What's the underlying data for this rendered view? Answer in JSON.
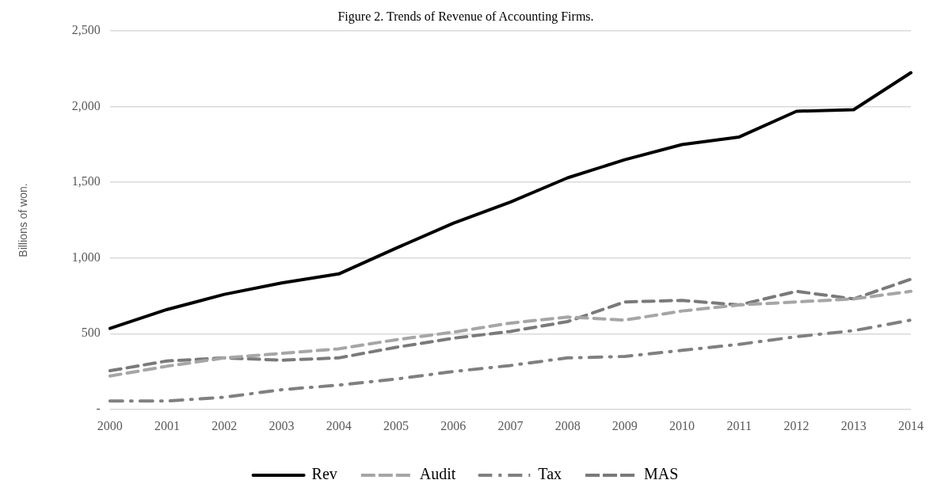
{
  "chart_data": {
    "type": "line",
    "title": "Figure 2. Trends of Revenue of Accounting Firms.",
    "ylabel": "Billions of won.",
    "categories": [
      "2000",
      "2001",
      "2002",
      "2003",
      "2004",
      "2005",
      "2006",
      "2007",
      "2008",
      "2009",
      "2010",
      "2011",
      "2012",
      "2013",
      "2014"
    ],
    "series": [
      {
        "name": "Rev",
        "color": "#000000",
        "line_style": "solid",
        "values": [
          535,
          660,
          760,
          835,
          895,
          1065,
          1230,
          1370,
          1530,
          1650,
          1750,
          1800,
          1970,
          1980,
          2225
        ]
      },
      {
        "name": "Audit",
        "color": "#a6a6a6",
        "line_style": "dashed",
        "values": [
          220,
          285,
          340,
          370,
          400,
          460,
          510,
          570,
          610,
          590,
          650,
          690,
          710,
          730,
          780
        ]
      },
      {
        "name": "Tax",
        "color": "#808080",
        "line_style": "dashdot",
        "values": [
          55,
          55,
          80,
          130,
          160,
          200,
          250,
          290,
          340,
          350,
          390,
          430,
          480,
          520,
          590
        ]
      },
      {
        "name": "MAS",
        "color": "#7a7a7a",
        "line_style": "dashed",
        "values": [
          255,
          320,
          340,
          325,
          340,
          410,
          470,
          515,
          580,
          710,
          720,
          690,
          780,
          730,
          860
        ]
      }
    ],
    "ylim": [
      0,
      2500
    ],
    "yticks": [
      {
        "value": 0,
        "label": "-"
      },
      500,
      {
        "value": 1000,
        "label": "1,000"
      },
      {
        "value": 1500,
        "label": "1,500"
      },
      {
        "value": 2000,
        "label": "2,000"
      },
      {
        "value": 2500,
        "label": "2,500"
      }
    ],
    "grid": "y",
    "legend": "bottom",
    "marker": "none"
  }
}
